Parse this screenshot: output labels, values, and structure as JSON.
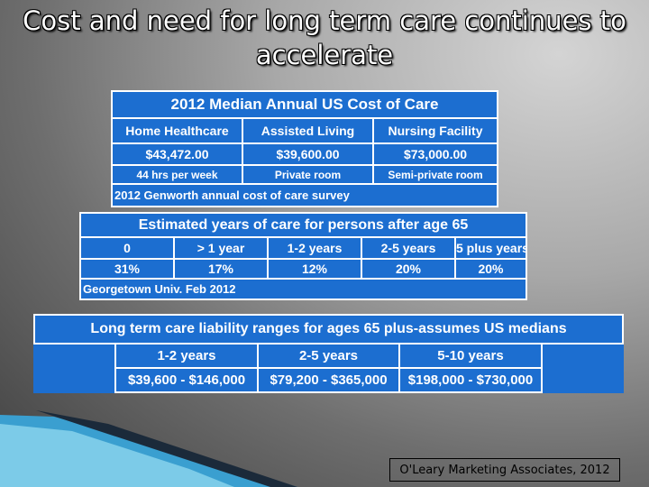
{
  "title": "Cost and need for long term care continues to accelerate",
  "tables": [
    {
      "title": "2012 Median Annual US Cost of Care",
      "rows": [
        [
          "Home Healthcare",
          "Assisted Living",
          "Nursing Facility"
        ],
        [
          "$43,472.00",
          "$39,600.00",
          "$73,000.00"
        ],
        [
          "44 hrs per week",
          "Private room",
          "Semi-private room"
        ]
      ],
      "source": "2012 Genworth annual cost of care survey"
    },
    {
      "title": "Estimated years of care for persons after age 65",
      "rows": [
        [
          "0",
          "> 1 year",
          "1-2 years",
          "2-5 years",
          "5 plus years"
        ],
        [
          "31%",
          "17%",
          "12%",
          "20%",
          "20%"
        ]
      ],
      "source": "Georgetown Univ. Feb 2012"
    },
    {
      "title": "Long term care liability ranges for ages 65 plus-assumes US medians",
      "rows": [
        [
          "1-2 years",
          "2-5 years",
          "5-10 years"
        ],
        [
          "$39,600 - $146,000",
          "$79,200 - $365,000",
          "$198,000 - $730,000"
        ]
      ]
    }
  ],
  "credit": "O'Leary Marketing Associates, 2012"
}
